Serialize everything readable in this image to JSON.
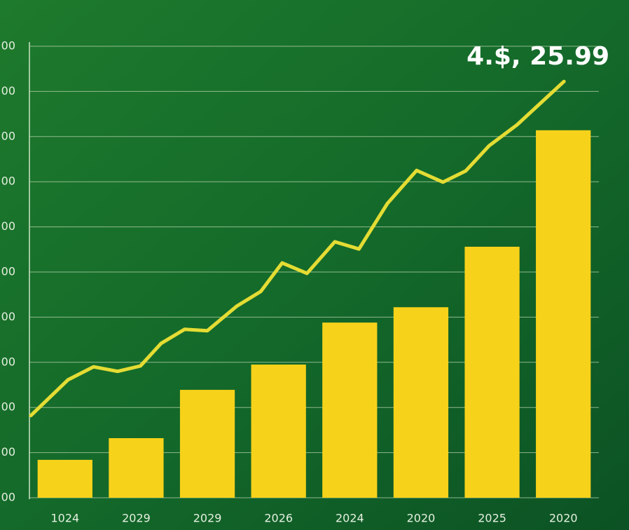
{
  "chart_data": {
    "type": "bar",
    "annotation": "4.$, 25.99",
    "categories": [
      "1024",
      "2029",
      "2029",
      "2026",
      "2024",
      "2020",
      "2025",
      "2020"
    ],
    "values": [
      84,
      132,
      239,
      295,
      388,
      422,
      556,
      814
    ],
    "color": "#f7d21a",
    "ylim": [
      0,
      1000
    ],
    "yticks": [
      {
        "value": 0,
        "label": "00"
      },
      {
        "value": 100,
        "label": "00"
      },
      {
        "value": 200,
        "label": "00"
      },
      {
        "value": 300,
        "label": "00"
      },
      {
        "value": 400,
        "label": "00"
      },
      {
        "value": 500,
        "label": "00"
      },
      {
        "value": 600,
        "label": "00"
      },
      {
        "value": 700,
        "label": "00"
      },
      {
        "value": 800,
        "label": "00"
      },
      {
        "value": 900,
        "label": "00"
      },
      {
        "value": 1000,
        "label": "00"
      }
    ],
    "xlim": [
      -0.5,
      7.5
    ],
    "grid": true,
    "line": {
      "color": "#e4dc34",
      "x": [
        -0.48,
        0.04,
        0.4,
        0.74,
        1.06,
        1.35,
        1.68,
        2.0,
        2.41,
        2.75,
        3.05,
        3.4,
        3.79,
        4.13,
        4.53,
        4.94,
        5.31,
        5.63,
        5.96,
        6.35,
        7.01
      ],
      "values": [
        182,
        261,
        290,
        280,
        292,
        342,
        373,
        370,
        424,
        457,
        520,
        497,
        567,
        551,
        652,
        725,
        699,
        724,
        780,
        826,
        922
      ]
    }
  }
}
